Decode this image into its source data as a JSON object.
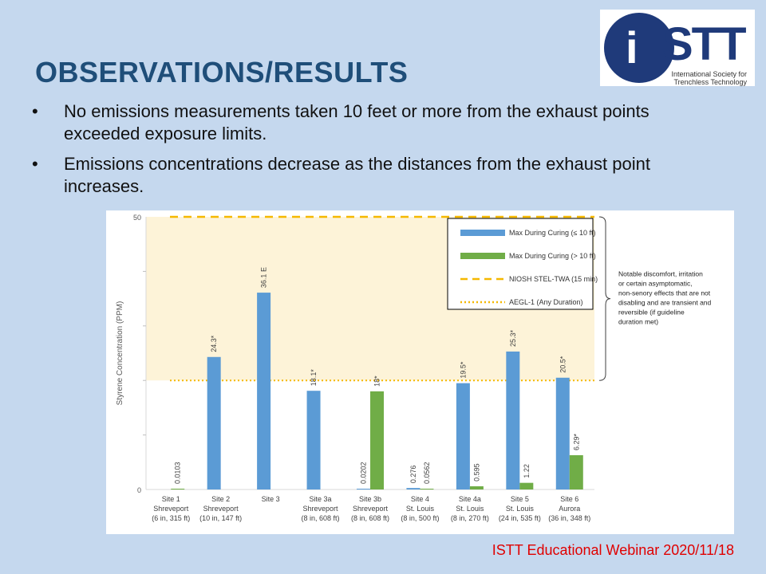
{
  "slide": {
    "title": "OBSERVATIONS/RESULTS",
    "bullets": [
      "No emissions measurements taken 10 feet or more from the exhaust points exceeded exposure limits.",
      "Emissions concentrations decrease as the distances from the exhaust point increases."
    ],
    "footer": "ISTT Educational Webinar 2020/11/18"
  },
  "logo": {
    "letter": "i",
    "text": "STT",
    "line1": "International Society for",
    "line2": "Trenchless Technology"
  },
  "colors": {
    "background": "#c5d8ee",
    "title": "#1f4e79",
    "footer": "#e00000",
    "blue_bar": "#5b9bd5",
    "green_bar": "#70ad47",
    "niosh": "#f5b800",
    "aegl": "#f5b800",
    "shade": "#fdf3d8"
  },
  "chart_data": {
    "type": "bar",
    "ylabel": "Styrene Concentration (PPM)",
    "ylim": [
      0,
      50
    ],
    "yticks": [
      "0",
      "50"
    ],
    "categories": [
      [
        "Site 1",
        "Shreveport",
        "(6 in, 315 ft)"
      ],
      [
        "Site 2",
        "Shreveport",
        "(10 in, 147 ft)"
      ],
      [
        "Site 3",
        "",
        ""
      ],
      [
        "Site 3a",
        "Shreveport",
        "(8 in, 608 ft)"
      ],
      [
        "Site 3b",
        "Shreveport",
        "(8 in, 608 ft)"
      ],
      [
        "Site 4",
        "St. Louis",
        "(8 in, 500 ft)"
      ],
      [
        "Site 4a",
        "St. Louis",
        "(8 in, 270 ft)"
      ],
      [
        "Site 5",
        "St. Louis",
        "(24 in, 535 ft)"
      ],
      [
        "Site 6",
        "Aurora",
        "(36 in, 348 ft)"
      ]
    ],
    "series": [
      {
        "name": "Max During Curing (≤ 10 ft)",
        "values": [
          null,
          24.3,
          36.1,
          18.1,
          0.0202,
          0.276,
          19.5,
          25.3,
          20.5
        ],
        "labels": [
          "",
          "24.3*",
          "36.1 E",
          "18.1*",
          "0.0202",
          "0.276",
          "19.5*",
          "25.3*",
          "20.5*"
        ]
      },
      {
        "name": "Max During Curing (> 10 ft)",
        "values": [
          0.0103,
          null,
          null,
          null,
          18,
          0.0562,
          0.595,
          1.22,
          6.29
        ],
        "labels": [
          "0.0103",
          "",
          "",
          "",
          "18*",
          "0.0562",
          "0.595",
          "1.22",
          "6.29*"
        ]
      }
    ],
    "reference_lines": [
      {
        "name": "NIOSH STEL-TWA (15 min)",
        "value": 50,
        "style": "dashed"
      },
      {
        "name": "AEGL-1 (Any Duration)",
        "value": 20,
        "style": "dotted"
      }
    ],
    "annotation": "Notable discomfort, irritation or certain asymptomatic, non-senory effects that are not disabling and are transient and reversible (if guideline duration met)",
    "legend_position": "top-right"
  }
}
